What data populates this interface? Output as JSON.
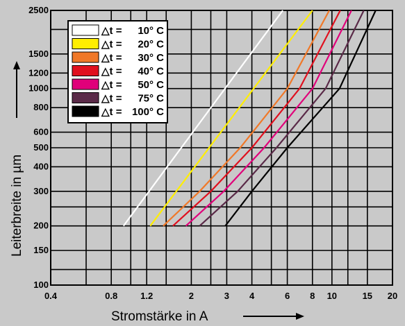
{
  "chart_data": {
    "type": "line",
    "xlabel": "Stromstärke in A",
    "ylabel": "Leiterbreite in µm",
    "xscale": "log",
    "yscale": "log",
    "xlim": [
      0.4,
      20
    ],
    "ylim": [
      100,
      2500
    ],
    "x_ticks": [
      0.4,
      0.8,
      1.2,
      2,
      3,
      4,
      6,
      8,
      10,
      15,
      20
    ],
    "x_tick_labels": [
      "0.4",
      "0.8",
      "1.2",
      "2",
      "3",
      "4",
      "6",
      "8",
      "10",
      "15",
      "20"
    ],
    "y_ticks": [
      100,
      150,
      200,
      300,
      400,
      500,
      600,
      800,
      1000,
      1200,
      1500,
      2500
    ],
    "y_tick_labels": [
      "100",
      "150",
      "200",
      "300",
      "400",
      "500",
      "600",
      "800",
      "1000",
      "1200",
      "1500",
      "2500"
    ],
    "x_gridlines": [
      0.4,
      0.6,
      0.8,
      1,
      1.2,
      1.5,
      2,
      2.5,
      3,
      4,
      5,
      6,
      8,
      10,
      12,
      15,
      20
    ],
    "y_gridlines": [
      100,
      120,
      150,
      200,
      250,
      300,
      400,
      500,
      600,
      800,
      1000,
      1200,
      1500,
      2000,
      2500
    ],
    "grid": true,
    "legend_position": "top-left",
    "legend_prefix": "△t =",
    "series": [
      {
        "name": "10° C",
        "color": "#ffffff",
        "points": [
          [
            0.92,
            200
          ],
          [
            5.7,
            2500
          ]
        ]
      },
      {
        "name": "20° C",
        "color": "#ffee00",
        "points": [
          [
            1.25,
            200
          ],
          [
            8.0,
            2500
          ]
        ]
      },
      {
        "name": "30° C",
        "color": "#f07828",
        "points": [
          [
            1.45,
            200
          ],
          [
            2.2,
            300
          ],
          [
            3.5,
            500
          ],
          [
            6.0,
            1000
          ],
          [
            9.7,
            2500
          ]
        ]
      },
      {
        "name": "40° C",
        "color": "#e0101e",
        "points": [
          [
            1.62,
            200
          ],
          [
            2.5,
            300
          ],
          [
            4.0,
            500
          ],
          [
            6.9,
            1000
          ],
          [
            11.0,
            2500
          ]
        ]
      },
      {
        "name": "50° C",
        "color": "#e0007a",
        "points": [
          [
            1.88,
            200
          ],
          [
            2.9,
            300
          ],
          [
            4.6,
            500
          ],
          [
            8.0,
            1000
          ],
          [
            12.5,
            2500
          ]
        ]
      },
      {
        "name": "75° C",
        "color": "#5a2a48",
        "points": [
          [
            2.2,
            200
          ],
          [
            3.4,
            300
          ],
          [
            5.3,
            500
          ],
          [
            9.3,
            1000
          ],
          [
            14.4,
            2500
          ]
        ]
      },
      {
        "name": "100° C",
        "color": "#000000",
        "points": [
          [
            2.95,
            200
          ],
          [
            4.0,
            300
          ],
          [
            6.0,
            500
          ],
          [
            10.9,
            1000
          ],
          [
            16.5,
            2500
          ]
        ]
      }
    ]
  }
}
